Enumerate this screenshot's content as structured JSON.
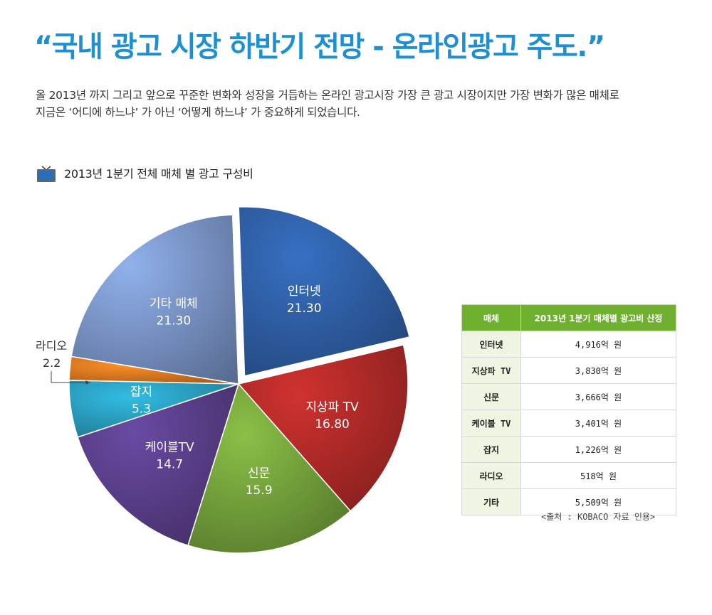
{
  "headline": "“국내 광고 시장 하반기 전망 - 온라인광고 주도.”",
  "description": {
    "line1": "올 2013년 까지 그리고 앞으로 꾸준한 변화와 성장을 거듭하는 온라인 광고시장 가장 큰 광고 시장이지만 가장 변화가 많은 매체로",
    "line2": "지금은 ‘어디에 하느냐’ 가 아닌 ‘어떻게 하느냐’ 가 중요하게 되었습니다."
  },
  "chart_data": {
    "type": "pie",
    "title": "2013년 1분기 전체 매체 별 광고 구성비",
    "title_icon": "tv-icon",
    "slices": [
      {
        "label": "인터넷",
        "value": 21.3,
        "value_text": "21.30",
        "color": "#2f5fa5",
        "exploded": true
      },
      {
        "label": "지상파 TV",
        "value": 16.8,
        "value_text": "16.80",
        "color": "#b02a28"
      },
      {
        "label": "신문",
        "value": 15.9,
        "value_text": "15.9",
        "color": "#75a33c"
      },
      {
        "label": "케이블TV",
        "value": 14.7,
        "value_text": "14.7",
        "color": "#5a3f8a"
      },
      {
        "label": "잡지",
        "value": 5.3,
        "value_text": "5.3",
        "color": "#2a9fc0"
      },
      {
        "label": "라디오",
        "value": 2.2,
        "value_text": "2.2",
        "color": "#e07a20",
        "external_label": true
      },
      {
        "label": "기타 매체",
        "value": 21.3,
        "value_text": "21.30",
        "color": "#7b96c9"
      }
    ]
  },
  "table": {
    "headers": [
      "매체",
      "2013년 1분기 매체별 광고비 산정"
    ],
    "rows": [
      {
        "media": "인터넷",
        "amount": "4,916억 원"
      },
      {
        "media": "지상파 TV",
        "amount": "3,830억 원"
      },
      {
        "media": "신문",
        "amount": "3,666억 원"
      },
      {
        "media": "케이블 TV",
        "amount": "3,401억 원"
      },
      {
        "media": "잡지",
        "amount": "1,226억 원"
      },
      {
        "media": "라디오",
        "amount": "518억 원"
      },
      {
        "media": "기타",
        "amount": "5,509억 원"
      }
    ],
    "header_color": "#70b030",
    "media_cell_color": "#eef5e2"
  },
  "source": "<출처 : KOBACO 자료 인용>"
}
